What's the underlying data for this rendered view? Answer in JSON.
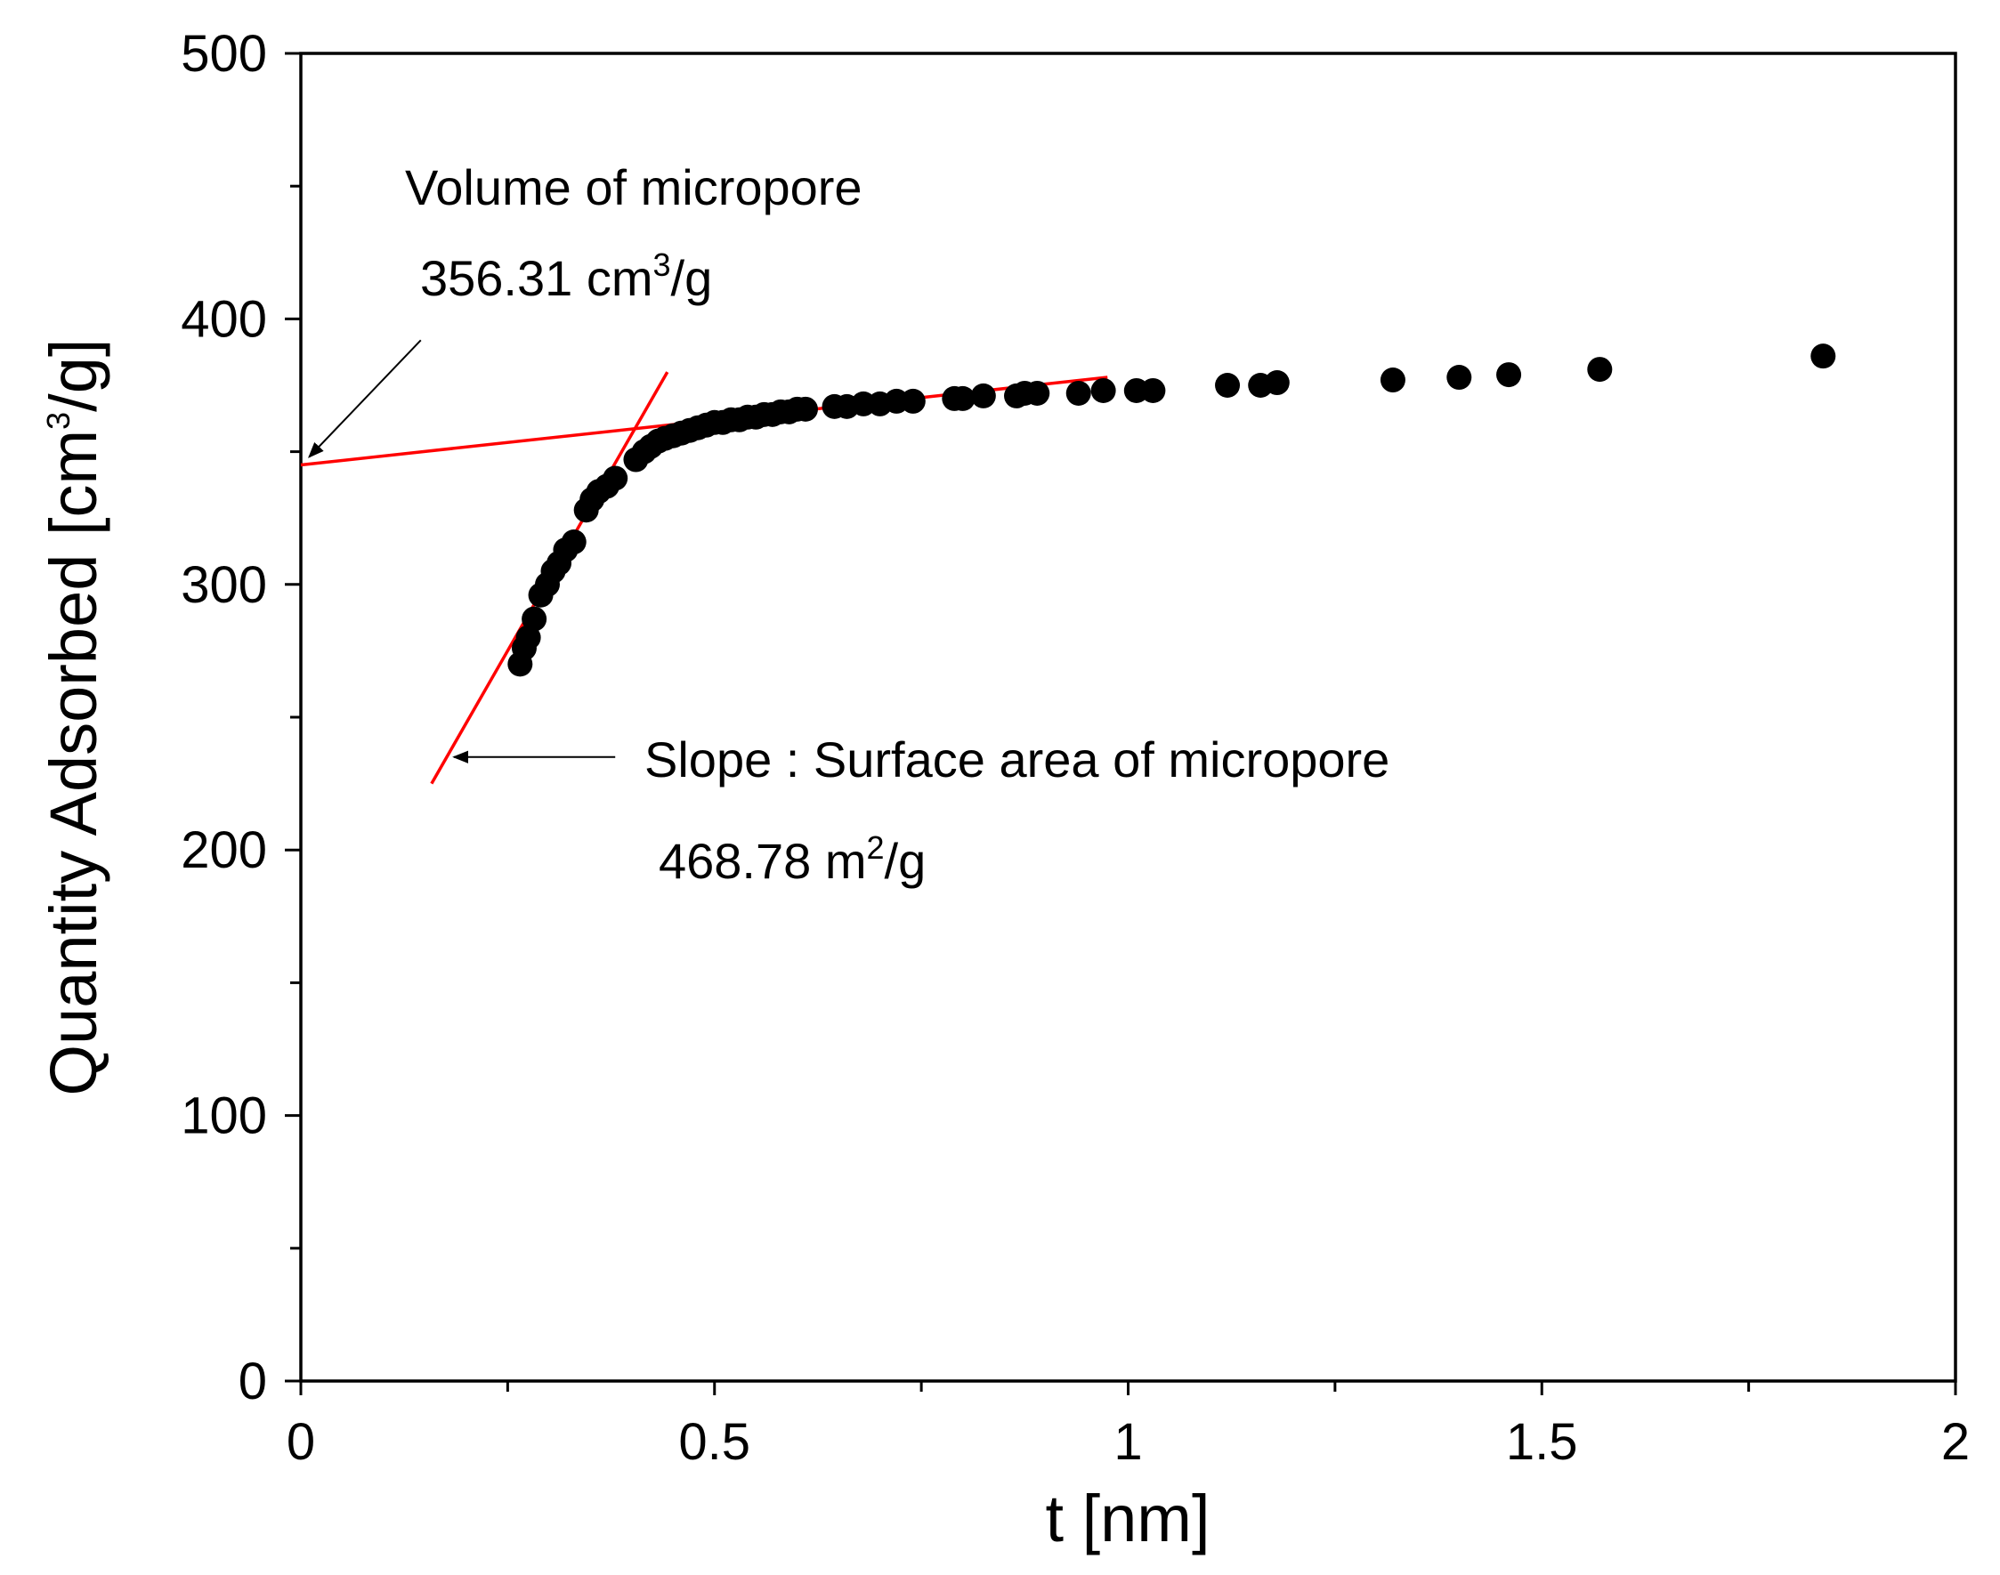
{
  "chart_data": {
    "type": "scatter",
    "title": "",
    "xlabel": "t [nm]",
    "ylabel": {
      "prefix": "Quantity Adsorbed [cm",
      "sup": "3",
      "suffix": "/g]"
    },
    "xlim": [
      0,
      2
    ],
    "ylim": [
      0,
      500
    ],
    "x_ticks": [
      0,
      0.5,
      1,
      1.5,
      2
    ],
    "x_tick_labels": [
      "0",
      "0.5",
      "1",
      "1.5",
      "2"
    ],
    "x_minor_ticks": [
      0.25,
      0.75,
      1.25,
      1.75
    ],
    "y_ticks": [
      0,
      100,
      200,
      300,
      400,
      500
    ],
    "y_tick_labels": [
      "0",
      "100",
      "200",
      "300",
      "400",
      "500"
    ],
    "y_minor_ticks": [
      50,
      150,
      250,
      350,
      450
    ],
    "grid": false,
    "series": [
      {
        "name": "data",
        "color": "#000000",
        "x": [
          0.265,
          0.27,
          0.275,
          0.282,
          0.29,
          0.298,
          0.305,
          0.312,
          0.32,
          0.33,
          0.345,
          0.352,
          0.36,
          0.37,
          0.38,
          0.405,
          0.415,
          0.423,
          0.432,
          0.44,
          0.45,
          0.46,
          0.47,
          0.48,
          0.49,
          0.5,
          0.51,
          0.52,
          0.53,
          0.54,
          0.55,
          0.56,
          0.57,
          0.58,
          0.59,
          0.6,
          0.61,
          0.645,
          0.66,
          0.68,
          0.7,
          0.72,
          0.74,
          0.79,
          0.8,
          0.825,
          0.865,
          0.875,
          0.89,
          0.94,
          0.97,
          1.01,
          1.03,
          1.12,
          1.16,
          1.18,
          1.32,
          1.4,
          1.46,
          1.57,
          1.84
        ],
        "y": [
          270,
          276,
          280,
          287,
          296,
          300,
          305,
          308,
          313,
          316,
          328,
          332,
          335,
          337,
          340,
          347,
          350,
          352,
          354,
          355,
          356,
          357,
          358,
          359,
          360,
          361,
          361,
          362,
          362,
          363,
          363,
          364,
          364,
          365,
          365,
          366,
          366,
          367,
          367,
          368,
          368,
          369,
          369,
          370,
          370,
          371,
          371,
          372,
          372,
          372,
          373,
          373,
          373,
          375,
          375,
          376,
          377,
          378,
          379,
          381,
          386
        ]
      }
    ],
    "fit_lines": [
      {
        "name": "micropore-volume-line",
        "color": "#ff0000",
        "x": [
          0,
          0.975
        ],
        "y": [
          345,
          378
        ]
      },
      {
        "name": "surface-area-line",
        "color": "#ff0000",
        "x": [
          0.158,
          0.443
        ],
        "y": [
          225,
          380
        ]
      }
    ],
    "annotations": {
      "volume_title": "Volume of micropore",
      "volume_value": {
        "prefix": "356.31 cm",
        "sup": "3",
        "suffix": "/g"
      },
      "slope_title": "Slope : Surface area of micropore",
      "slope_value": {
        "prefix": "468.78 m",
        "sup": "2",
        "suffix": "/g"
      },
      "volume_arrow": {
        "from": [
          0.145,
          392
        ],
        "to": [
          0.01,
          348
        ]
      },
      "slope_arrow": {
        "from": [
          0.38,
          235
        ],
        "to": [
          0.185,
          235
        ]
      }
    }
  }
}
